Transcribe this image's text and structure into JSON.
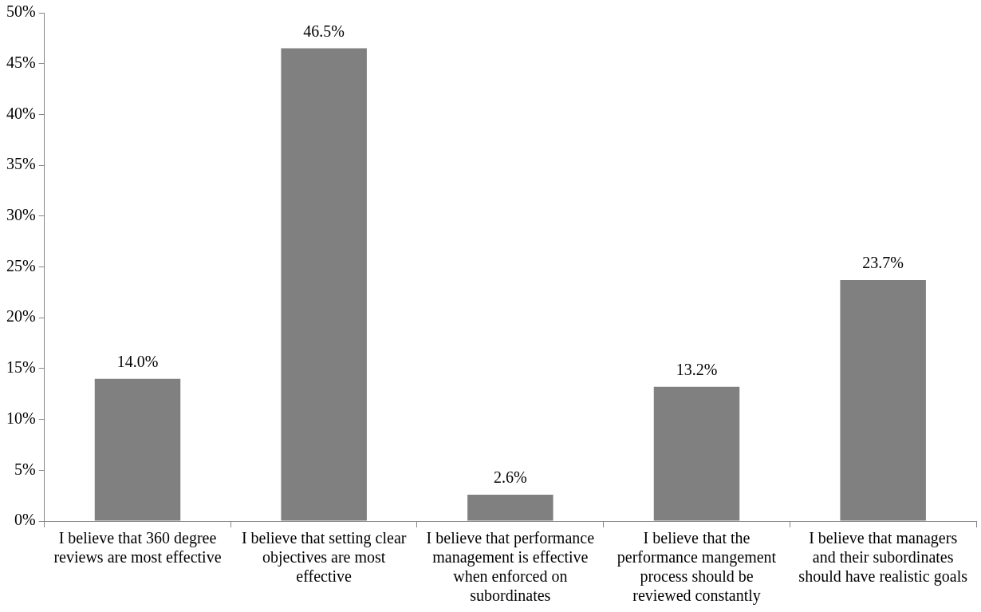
{
  "chart_data": {
    "type": "bar",
    "categories": [
      "I believe that 360 degree reviews are most effective",
      "I believe that setting clear objectives are most effective",
      "I believe that performance management is effective when enforced on subordinates",
      "I believe that the performance mangement process should be reviewed constantly",
      "I believe that managers and their subordinates should have realistic goals"
    ],
    "values": [
      14.0,
      46.5,
      2.6,
      13.2,
      23.7
    ],
    "value_labels": [
      "14.0%",
      "46.5%",
      "2.6%",
      "13.2%",
      "23.7%"
    ],
    "color": "#808080",
    "ylim": [
      0,
      50
    ],
    "yticks": [
      {
        "value": 0,
        "label": "0%"
      },
      {
        "value": 5,
        "label": "5%"
      },
      {
        "value": 10,
        "label": "10%"
      },
      {
        "value": 15,
        "label": "15%"
      },
      {
        "value": 20,
        "label": "20%"
      },
      {
        "value": 25,
        "label": "25%"
      },
      {
        "value": 30,
        "label": "30%"
      },
      {
        "value": 35,
        "label": "35%"
      },
      {
        "value": 40,
        "label": "40%"
      },
      {
        "value": 45,
        "label": "45%"
      },
      {
        "value": 50,
        "label": "50%"
      }
    ],
    "grid": false,
    "legend": false
  }
}
